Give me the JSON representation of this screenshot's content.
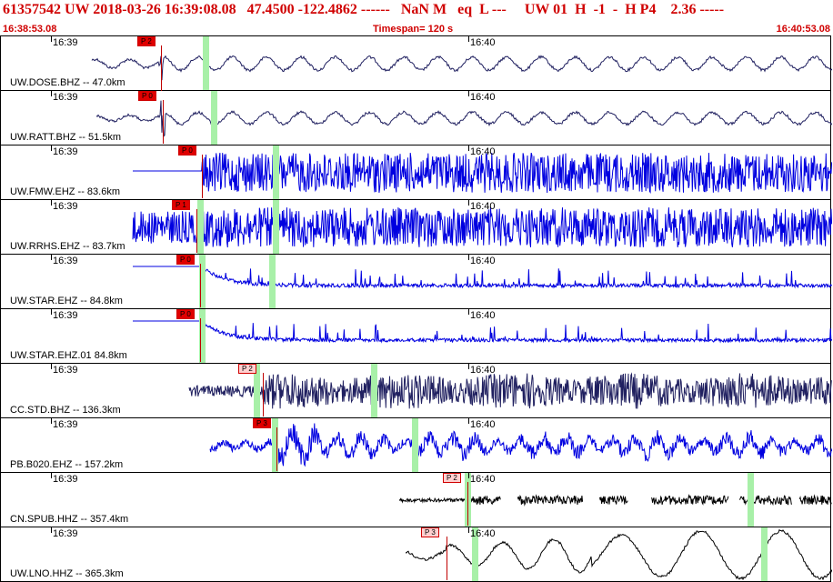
{
  "header": {
    "title": "61357542 UW 2018-03-26 16:39:08.08   47.4500 -122.4862 ------   NaN M   eq  L ---     UW 01  H  -1  -  H P4    2.36 -----",
    "start_time": "16:38:53.08",
    "timespan": "Timespan= 120 s",
    "end_time": "16:40:53.08"
  },
  "colors": {
    "header_red": "#d00000",
    "trace_dark": "#202060",
    "trace_blue": "#0000e0",
    "pick_red": "#e00000",
    "green_marker": "#a8f0a8"
  },
  "traces": [
    {
      "label": "UW.DOSE.BHZ -- 47.0km",
      "tick1": "16:39",
      "tick2": "16:40",
      "pick": "P 2",
      "pick_style": "solid",
      "color": "dark"
    },
    {
      "label": "UW.RATT.BHZ -- 51.5km",
      "tick1": "16:39",
      "tick2": "16:40",
      "pick": "P 0",
      "pick_style": "solid",
      "color": "dark"
    },
    {
      "label": "UW.FMW.EHZ -- 83.6km",
      "tick1": "16:39",
      "tick2": "16:40",
      "pick": "P 0",
      "pick_style": "solid",
      "color": "blue"
    },
    {
      "label": "UW.RRHS.EHZ -- 83.7km",
      "tick1": "16:39",
      "tick2": "16:40",
      "pick": "P 1",
      "pick_style": "solid",
      "color": "blue"
    },
    {
      "label": "UW.STAR.EHZ -- 84.8km",
      "tick1": "16:39",
      "tick2": "16:40",
      "pick": "P 0",
      "pick_style": "solid",
      "color": "blue"
    },
    {
      "label": "UW.STAR.EHZ.01 84.8km",
      "tick1": "16:39",
      "tick2": "16:40",
      "pick": "P 0",
      "pick_style": "solid",
      "color": "blue"
    },
    {
      "label": "CC.STD.BHZ -- 136.3km",
      "tick1": "16:39",
      "tick2": "16:40",
      "pick": "P 2",
      "pick_style": "light",
      "color": "dark"
    },
    {
      "label": "PB.B020.EHZ -- 157.2km",
      "tick1": "16:39",
      "tick2": "16:40",
      "pick": "P 3",
      "pick_style": "solid",
      "color": "blue"
    },
    {
      "label": "CN.SPUB.HHZ -- 357.4km",
      "tick1": "16:39",
      "tick2": "16:40",
      "pick": "P 2",
      "pick_style": "light",
      "color": "black"
    },
    {
      "label": "UW.LNO.HHZ -- 365.3km",
      "tick1": "16:39",
      "tick2": "16:40",
      "pick": "P 3",
      "pick_style": "light",
      "color": "black"
    }
  ]
}
